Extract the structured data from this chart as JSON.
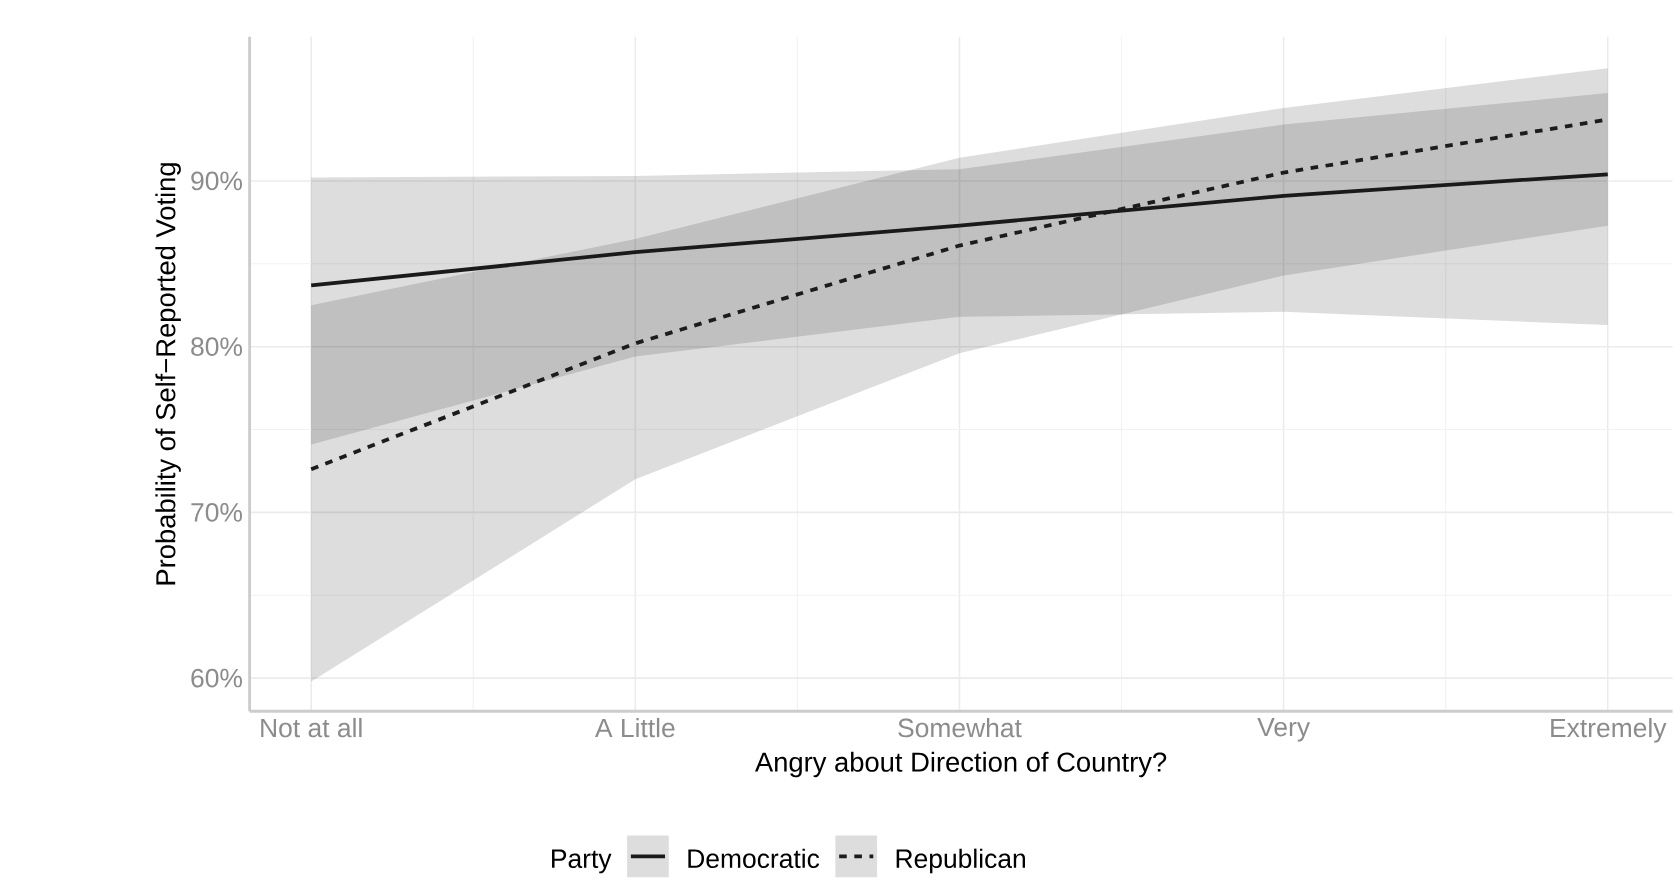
{
  "chart_data": {
    "type": "line",
    "xlabel": "Angry about Direction of Country?",
    "ylabel": "Probability of Self−Reported Voting",
    "legend_title": "Party",
    "categories": [
      "Not at all",
      "A Little",
      "Somewhat",
      "Very",
      "Extremely"
    ],
    "series": [
      {
        "name": "Democratic",
        "color": "#1a1a1a",
        "line_style": "solid",
        "values": [
          83.7,
          85.7,
          87.3,
          89.1,
          90.4
        ],
        "lower": [
          74.1,
          79.4,
          81.8,
          82.1,
          81.3
        ],
        "upper": [
          90.2,
          90.3,
          90.7,
          93.4,
          95.3
        ]
      },
      {
        "name": "Republican",
        "color": "#1c1c1c",
        "line_style": "dashed",
        "values": [
          72.6,
          80.2,
          86.1,
          90.5,
          93.7
        ],
        "lower": [
          59.8,
          72.0,
          79.6,
          84.3,
          87.3
        ],
        "upper": [
          82.5,
          86.5,
          91.4,
          94.4,
          96.8
        ]
      }
    ],
    "ylim": [
      58,
      98.7
    ],
    "yticks": [
      {
        "value": 60,
        "label": "60%"
      },
      {
        "value": 70,
        "label": "70%"
      },
      {
        "value": 80,
        "label": "80%"
      },
      {
        "value": 90,
        "label": "90%"
      }
    ],
    "grid": true,
    "legend": "bottom"
  }
}
